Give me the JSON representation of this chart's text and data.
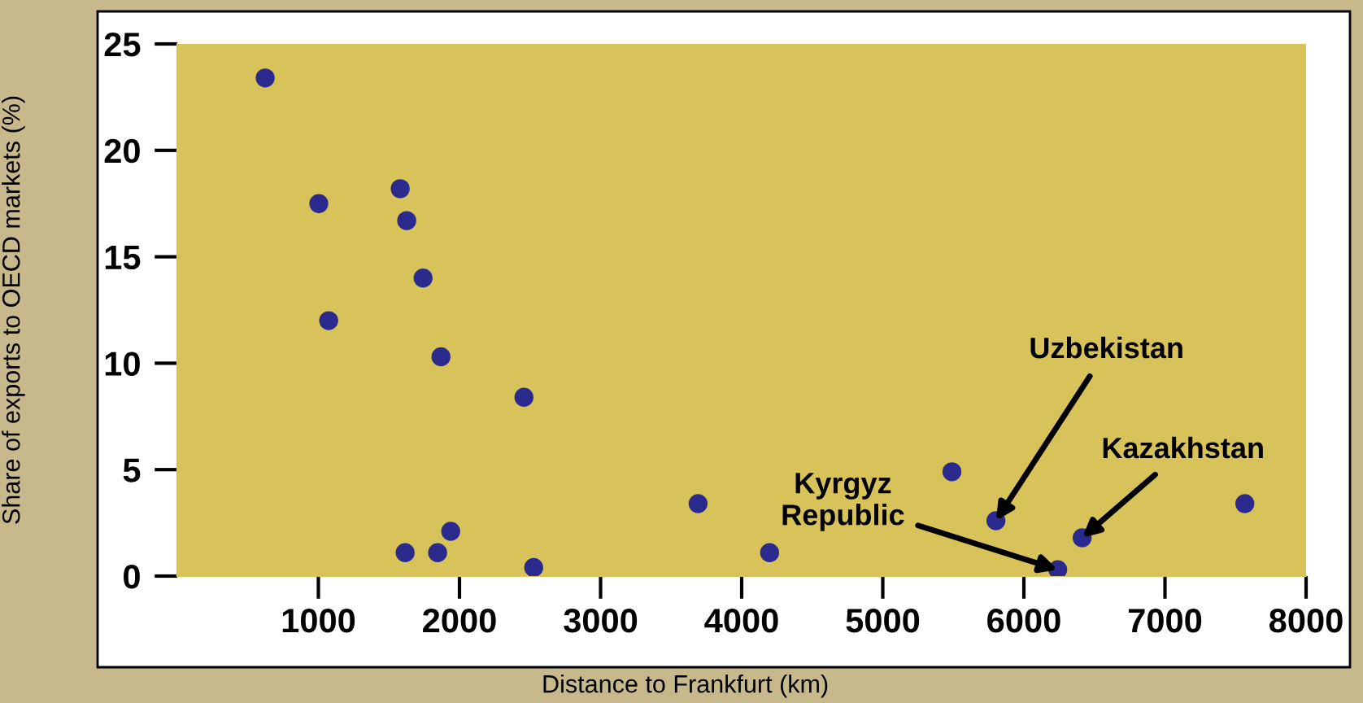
{
  "chart_data": {
    "type": "scatter",
    "xlabel": "Distance to Frankfurt (km)",
    "ylabel": "Share of exports to OECD markets (%)",
    "xlim": [
      0,
      8000
    ],
    "ylim": [
      0,
      25
    ],
    "xticks": [
      1000,
      2000,
      3000,
      4000,
      5000,
      6000,
      7000,
      8000
    ],
    "yticks": [
      0,
      5,
      10,
      15,
      20,
      25
    ],
    "grid": false,
    "marker": "circle",
    "series": [
      {
        "color": "#2b2a8e",
        "x": [
          623,
          1003,
          1073,
          1580,
          1626,
          1742,
          1869,
          2457,
          1615,
          1845,
          1938,
          2526,
          3691,
          4198,
          5490,
          5802,
          6240,
          6413,
          7566
        ],
        "values": [
          23.4,
          17.5,
          12.0,
          18.2,
          16.7,
          14.0,
          10.3,
          8.4,
          1.1,
          1.1,
          2.1,
          0.4,
          3.4,
          1.1,
          4.9,
          2.6,
          0.3,
          1.8,
          3.4
        ]
      }
    ],
    "annotations": [
      {
        "text": "Uzbekistan",
        "x": 5802,
        "y": 2.6
      },
      {
        "text": "Kazakhstan",
        "x": 6413,
        "y": 1.8
      },
      {
        "text": "Kyrgyz\nRepublic",
        "x": 6240,
        "y": 0.3
      }
    ]
  }
}
